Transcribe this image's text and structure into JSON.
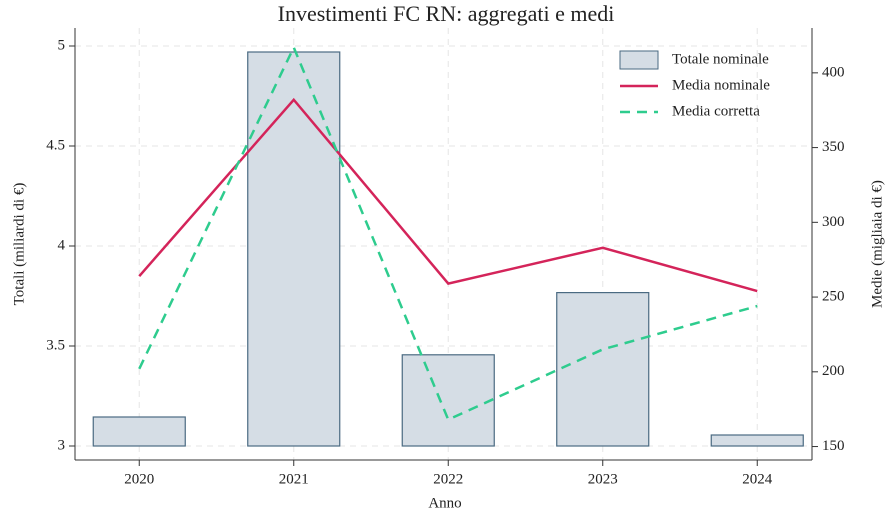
{
  "chart_data": {
    "type": "bar-line",
    "title": "Investimenti FC RN: aggregati e medi",
    "x_label": "Anno",
    "y_label": "Totali (miliardi di €)",
    "y2_label": "Medie (migliaia di €)",
    "categories": [
      "2020",
      "2021",
      "2022",
      "2023",
      "2024"
    ],
    "series": [
      {
        "name": "Totale nominale",
        "type": "bar",
        "color": "#d5dde5",
        "values": [
          3.145,
          4.97,
          3.456,
          3.767,
          3.055
        ]
      },
      {
        "name": "Media nominale",
        "type": "line",
        "color": "#d4245a",
        "axis": "y2",
        "values": [
          264,
          382,
          259,
          283,
          254
        ]
      },
      {
        "name": "Media corretta",
        "type": "line",
        "color": "#2ecc8e",
        "dashed": true,
        "axis": "y2",
        "values": [
          202,
          417,
          168,
          215,
          244
        ]
      }
    ],
    "ylim": [
      2.93,
      5.09
    ],
    "yticks": [
      3,
      3.5,
      4,
      4.5,
      5
    ],
    "y2lim": [
      141,
      430
    ],
    "y2ticks": [
      150,
      200,
      250,
      300,
      350,
      400
    ],
    "grid": true,
    "legend": "upper right"
  }
}
